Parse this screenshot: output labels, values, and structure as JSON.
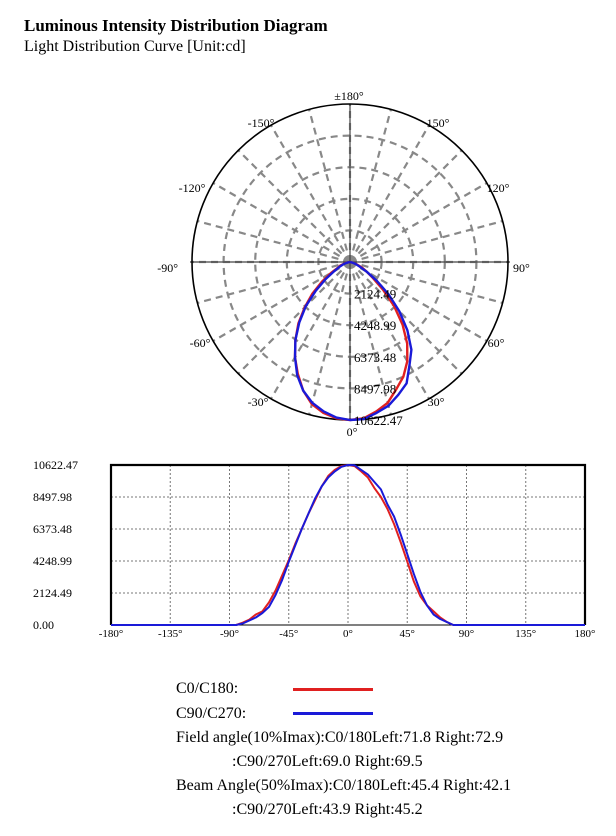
{
  "header": {
    "title": "Luminous Intensity Distribution Diagram",
    "subtitle": "Light Distribution Curve [Unit:cd]"
  },
  "colors": {
    "c0": "#e02020",
    "c90": "#1a1ad8",
    "grid": "#888888"
  },
  "chart_data": [
    {
      "type": "polar",
      "angle_labels": [
        "±180°",
        "150°",
        "120°",
        "90°",
        "60°",
        "30°",
        "0°",
        "-30°",
        "-60°",
        "-90°",
        "-120°",
        "-150°"
      ],
      "radial_tick_labels": [
        "2124.49",
        "4248.99",
        "6373.48",
        "8497.98",
        "10622.47"
      ],
      "rmax": 10622.47,
      "series": [
        {
          "name": "C0/C180",
          "color": "#e02020",
          "angles": [
            -90,
            -85,
            -80,
            -75,
            -70,
            -65,
            -60,
            -55,
            -50,
            -45,
            -40,
            -35,
            -30,
            -25,
            -20,
            -15,
            -10,
            -5,
            0,
            5,
            10,
            15,
            20,
            25,
            30,
            35,
            40,
            45,
            50,
            55,
            60,
            65,
            70,
            75,
            80,
            85,
            90
          ],
          "values": [
            0,
            0,
            150,
            350,
            700,
            900,
            1500,
            2300,
            3300,
            4300,
            5400,
            6400,
            7400,
            8300,
            9200,
            9900,
            10300,
            10550,
            10622,
            10550,
            10200,
            9800,
            9100,
            8500,
            7700,
            6700,
            5500,
            4200,
            2900,
            1900,
            1300,
            900,
            500,
            200,
            0,
            0,
            0
          ]
        },
        {
          "name": "C90/C270",
          "color": "#1a1ad8",
          "angles": [
            -90,
            -85,
            -80,
            -75,
            -70,
            -65,
            -60,
            -55,
            -50,
            -45,
            -40,
            -35,
            -30,
            -25,
            -20,
            -15,
            -10,
            -5,
            0,
            5,
            10,
            15,
            20,
            25,
            30,
            35,
            40,
            45,
            50,
            55,
            60,
            65,
            70,
            75,
            80,
            85,
            90
          ],
          "values": [
            0,
            0,
            100,
            300,
            500,
            800,
            1200,
            2000,
            3000,
            4200,
            5300,
            6400,
            7400,
            8400,
            9200,
            9800,
            10200,
            10500,
            10622,
            10600,
            10300,
            10000,
            9500,
            9000,
            8000,
            7200,
            6000,
            4700,
            3400,
            2200,
            1300,
            700,
            400,
            200,
            0,
            0,
            0
          ]
        }
      ]
    },
    {
      "type": "line",
      "x_tick_labels": [
        "-180°",
        "-135°",
        "-90°",
        "-45°",
        "0°",
        "45°",
        "90°",
        "135°",
        "180°"
      ],
      "y_tick_labels": [
        "10622.47",
        "8497.98",
        "6373.48",
        "4248.99",
        "2124.49",
        "0.00"
      ],
      "xlim": [
        -180,
        180
      ],
      "ylim": [
        0,
        10622.47
      ],
      "grid": true,
      "series": [
        {
          "name": "C0/C180",
          "color": "#e02020"
        },
        {
          "name": "C90/C270",
          "color": "#1a1ad8"
        }
      ]
    }
  ],
  "legend": {
    "c0_label": "C0/C180:",
    "c90_label": "C90/C270:"
  },
  "info": {
    "field_angle": "Field angle(10%Imax):C0/180Left:71.8 Right:72.9",
    "field_angle_c90": ":C90/270Left:69.0 Right:69.5",
    "beam_angle": "Beam Angle(50%Imax):C0/180Left:45.4 Right:42.1",
    "beam_angle_c90": ":C90/270Left:43.9 Right:45.2"
  }
}
